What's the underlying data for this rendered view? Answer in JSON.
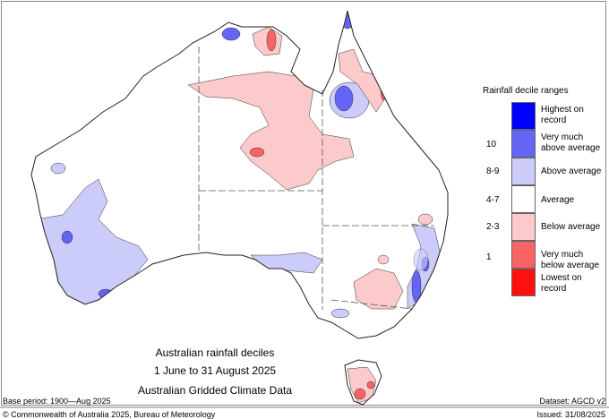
{
  "map": {
    "title": "Australian rainfall deciles",
    "period": "1 June to 31 August 2025",
    "dataset_name": "Australian Gridded Climate Data",
    "base_period": "Base period: 1900—Aug 2025",
    "dataset": "Dataset: AGCD v2",
    "copyright": "© Commonwealth of Australia 2025, Bureau of Meteorology",
    "issued": "Issued: 31/08/2025"
  },
  "legend": {
    "title": "Rainfall decile ranges",
    "items": [
      {
        "label": "Highest on record",
        "decile": "",
        "color": "#0000ff"
      },
      {
        "label": "Very much above average",
        "decile": "10",
        "color": "#6464f5"
      },
      {
        "label": "Above average",
        "decile": "8-9",
        "color": "#ccccfa"
      },
      {
        "label": "Average",
        "decile": "4-7",
        "color": "#ffffff"
      },
      {
        "label": "Below average",
        "decile": "2-3",
        "color": "#fccaca"
      },
      {
        "label": "Very much below average",
        "decile": "1",
        "color": "#f86464"
      },
      {
        "label": "Lowest on record",
        "decile": "",
        "color": "#ff1010"
      }
    ]
  }
}
